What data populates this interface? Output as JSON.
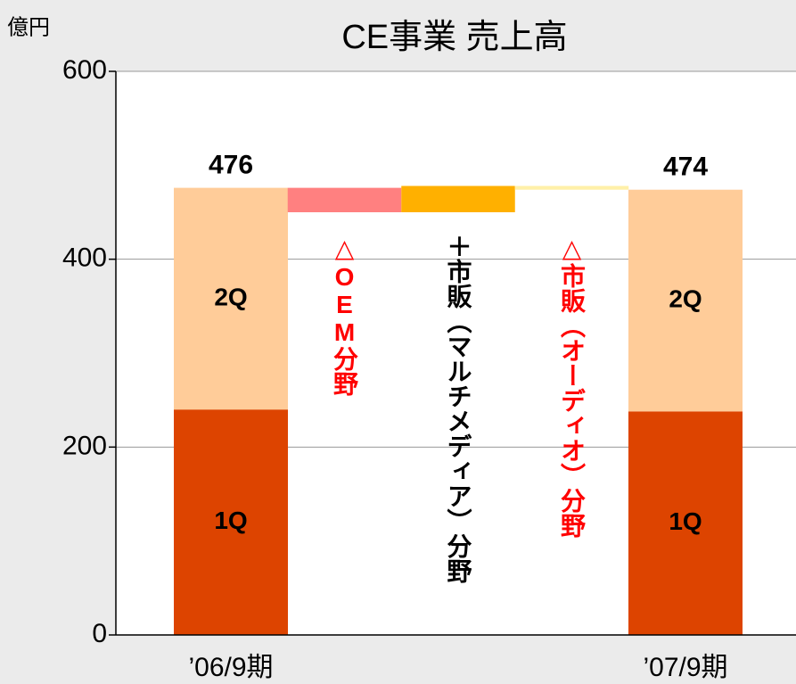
{
  "chart_data": {
    "type": "waterfall",
    "title": "CE事業 売上高",
    "y_unit": "億円",
    "categories": [
      "’06/9期",
      "’07/9期"
    ],
    "series": [
      {
        "name": "1Q",
        "color": "#dd4400",
        "values": [
          240,
          238
        ]
      },
      {
        "name": "2Q",
        "color": "#ffcc99",
        "values": [
          236,
          236
        ]
      }
    ],
    "totals": [
      476,
      474
    ],
    "steps": [
      {
        "label": "△OEM分野",
        "value": -26,
        "color": "#ff8080",
        "text_color": "#ff0000"
      },
      {
        "label": "＋市販（マルチメディア）分野",
        "value": 28,
        "color": "#ffb000",
        "text_color": "#000000"
      },
      {
        "label": "△市販（オーディオ）分野",
        "value": -4,
        "color": "#fff0a8",
        "text_color": "#ff0000"
      }
    ],
    "ylim": [
      0,
      600
    ],
    "yticks": [
      0,
      200,
      400,
      600
    ],
    "grid": true
  }
}
